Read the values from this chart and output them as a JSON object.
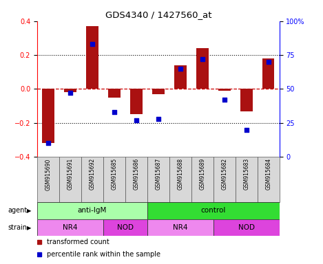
{
  "title": "GDS4340 / 1427560_at",
  "samples": [
    "GSM915690",
    "GSM915691",
    "GSM915692",
    "GSM915685",
    "GSM915686",
    "GSM915687",
    "GSM915688",
    "GSM915689",
    "GSM915682",
    "GSM915683",
    "GSM915684"
  ],
  "bar_values": [
    -0.32,
    -0.02,
    0.37,
    -0.05,
    -0.15,
    -0.03,
    0.14,
    0.24,
    -0.01,
    -0.13,
    0.18
  ],
  "dot_values": [
    10,
    47,
    83,
    33,
    27,
    28,
    65,
    72,
    42,
    20,
    70
  ],
  "ylim_left": [
    -0.4,
    0.4
  ],
  "ylim_right": [
    0,
    100
  ],
  "yticks_left": [
    -0.4,
    -0.2,
    0.0,
    0.2,
    0.4
  ],
  "yticks_right": [
    0,
    25,
    50,
    75,
    100
  ],
  "ytick_labels_right": [
    "0",
    "25",
    "50",
    "75",
    "100%"
  ],
  "bar_color": "#aa1111",
  "dot_color": "#0000cc",
  "hline_color": "#cc0000",
  "agent_groups": [
    {
      "label": "anti-IgM",
      "start": 0,
      "end": 5,
      "color": "#aaffaa"
    },
    {
      "label": "control",
      "start": 5,
      "end": 11,
      "color": "#33dd33"
    }
  ],
  "strain_groups": [
    {
      "label": "NR4",
      "start": 0,
      "end": 3,
      "color": "#ee88ee"
    },
    {
      "label": "NOD",
      "start": 3,
      "end": 5,
      "color": "#dd44dd"
    },
    {
      "label": "NR4",
      "start": 5,
      "end": 8,
      "color": "#ee88ee"
    },
    {
      "label": "NOD",
      "start": 8,
      "end": 11,
      "color": "#dd44dd"
    }
  ],
  "legend_items": [
    {
      "label": "transformed count",
      "color": "#aa1111"
    },
    {
      "label": "percentile rank within the sample",
      "color": "#0000cc"
    }
  ],
  "agent_label": "agent",
  "strain_label": "strain",
  "sample_bg": "#d8d8d8"
}
